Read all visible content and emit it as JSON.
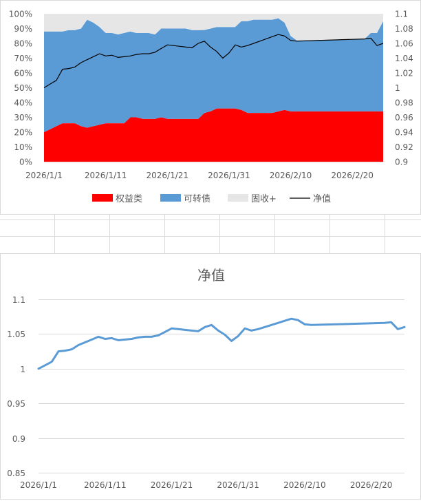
{
  "colors": {
    "equity": "#ff0000",
    "convertible": "#5b9bd5",
    "fixed_income": "#e7e6e6",
    "nav_line_top": "#000000",
    "nav_line_bottom": "#5b9bd5",
    "grid": "#d9d9d9",
    "text": "#595959"
  },
  "chart_data": [
    {
      "type": "area",
      "stacked": true,
      "x_type": "date",
      "dates": [
        "2026-01-01",
        "2026-01-02",
        "2026-01-03",
        "2026-01-04",
        "2026-01-05",
        "2026-01-06",
        "2026-01-07",
        "2026-01-08",
        "2026-01-09",
        "2026-01-10",
        "2026-01-11",
        "2026-01-12",
        "2026-01-13",
        "2026-01-14",
        "2026-01-15",
        "2026-01-16",
        "2026-01-17",
        "2026-01-18",
        "2026-01-19",
        "2026-01-20",
        "2026-01-21",
        "2026-01-22",
        "2026-01-23",
        "2026-01-24",
        "2026-01-25",
        "2026-01-26",
        "2026-01-27",
        "2026-01-28",
        "2026-01-29",
        "2026-01-30",
        "2026-01-31",
        "2026-02-01",
        "2026-02-02",
        "2026-02-03",
        "2026-02-04",
        "2026-02-05",
        "2026-02-06",
        "2026-02-07",
        "2026-02-08",
        "2026-02-09",
        "2026-02-10",
        "2026-02-11",
        "2026-02-22",
        "2026-02-23",
        "2026-02-24",
        "2026-02-25"
      ],
      "series": [
        {
          "name": "权益类",
          "axis": "left",
          "values": [
            0.2,
            0.22,
            0.24,
            0.26,
            0.26,
            0.26,
            0.24,
            0.23,
            0.24,
            0.25,
            0.26,
            0.26,
            0.26,
            0.26,
            0.3,
            0.3,
            0.29,
            0.29,
            0.29,
            0.3,
            0.29,
            0.29,
            0.29,
            0.29,
            0.29,
            0.29,
            0.33,
            0.34,
            0.36,
            0.36,
            0.36,
            0.36,
            0.35,
            0.33,
            0.33,
            0.33,
            0.33,
            0.33,
            0.34,
            0.35,
            0.34,
            0.34,
            0.34,
            0.34,
            0.34,
            0.34
          ]
        },
        {
          "name": "可转债",
          "axis": "left",
          "values": [
            0.68,
            0.66,
            0.64,
            0.62,
            0.63,
            0.63,
            0.66,
            0.73,
            0.7,
            0.66,
            0.61,
            0.61,
            0.6,
            0.61,
            0.58,
            0.57,
            0.58,
            0.58,
            0.57,
            0.6,
            0.61,
            0.61,
            0.61,
            0.61,
            0.6,
            0.6,
            0.56,
            0.56,
            0.55,
            0.55,
            0.55,
            0.55,
            0.6,
            0.62,
            0.63,
            0.63,
            0.63,
            0.63,
            0.63,
            0.59,
            0.51,
            0.48,
            0.49,
            0.53,
            0.53,
            0.61
          ]
        },
        {
          "name": "固收+",
          "axis": "left",
          "values": [
            0.12,
            0.12,
            0.12,
            0.12,
            0.11,
            0.11,
            0.1,
            0.04,
            0.06,
            0.09,
            0.13,
            0.13,
            0.14,
            0.13,
            0.12,
            0.13,
            0.13,
            0.13,
            0.14,
            0.1,
            0.1,
            0.1,
            0.1,
            0.1,
            0.11,
            0.11,
            0.11,
            0.1,
            0.09,
            0.09,
            0.09,
            0.09,
            0.05,
            0.05,
            0.04,
            0.04,
            0.04,
            0.04,
            0.03,
            0.06,
            0.15,
            0.18,
            0.17,
            0.13,
            0.13,
            0.05
          ]
        },
        {
          "name": "净值",
          "axis": "right",
          "line": true,
          "values": [
            1.0,
            1.005,
            1.01,
            1.025,
            1.026,
            1.028,
            1.034,
            1.038,
            1.042,
            1.046,
            1.043,
            1.044,
            1.041,
            1.042,
            1.043,
            1.045,
            1.046,
            1.046,
            1.048,
            1.053,
            1.058,
            1.057,
            1.056,
            1.055,
            1.054,
            1.06,
            1.063,
            1.055,
            1.049,
            1.04,
            1.047,
            1.058,
            1.055,
            1.057,
            1.06,
            1.063,
            1.066,
            1.069,
            1.072,
            1.07,
            1.064,
            1.063,
            1.066,
            1.067,
            1.057,
            1.06
          ]
        }
      ],
      "y_left": {
        "min": 0,
        "max": 1,
        "ticks": [
          "0%",
          "10%",
          "20%",
          "30%",
          "40%",
          "50%",
          "60%",
          "70%",
          "80%",
          "90%",
          "100%"
        ]
      },
      "y_right": {
        "min": 0.9,
        "max": 1.1,
        "ticks": [
          "0.9",
          "0.92",
          "0.94",
          "0.96",
          "0.98",
          "1",
          "1.02",
          "1.04",
          "1.06",
          "1.08",
          "1.1"
        ]
      },
      "x_ticks": [
        "2026/1/1",
        "2026/1/11",
        "2026/1/21",
        "2026/1/31",
        "2026/2/10",
        "2026/2/20"
      ],
      "legend": {
        "position": "bottom",
        "items": [
          "权益类",
          "可转债",
          "固收+",
          "净值"
        ]
      },
      "grid": false
    },
    {
      "type": "line",
      "title": "净值",
      "x_type": "date",
      "dates": [
        "2026-01-01",
        "2026-01-02",
        "2026-01-03",
        "2026-01-04",
        "2026-01-05",
        "2026-01-06",
        "2026-01-07",
        "2026-01-08",
        "2026-01-09",
        "2026-01-10",
        "2026-01-11",
        "2026-01-12",
        "2026-01-13",
        "2026-01-14",
        "2026-01-15",
        "2026-01-16",
        "2026-01-17",
        "2026-01-18",
        "2026-01-19",
        "2026-01-20",
        "2026-01-21",
        "2026-01-22",
        "2026-01-23",
        "2026-01-24",
        "2026-01-25",
        "2026-01-26",
        "2026-01-27",
        "2026-01-28",
        "2026-01-29",
        "2026-01-30",
        "2026-01-31",
        "2026-02-01",
        "2026-02-02",
        "2026-02-03",
        "2026-02-04",
        "2026-02-05",
        "2026-02-06",
        "2026-02-07",
        "2026-02-08",
        "2026-02-09",
        "2026-02-10",
        "2026-02-11",
        "2026-02-22",
        "2026-02-23",
        "2026-02-24",
        "2026-02-25"
      ],
      "series": [
        {
          "values": [
            1.0,
            1.005,
            1.01,
            1.025,
            1.026,
            1.028,
            1.034,
            1.038,
            1.042,
            1.046,
            1.043,
            1.044,
            1.041,
            1.042,
            1.043,
            1.045,
            1.046,
            1.046,
            1.048,
            1.053,
            1.058,
            1.057,
            1.056,
            1.055,
            1.054,
            1.06,
            1.063,
            1.055,
            1.049,
            1.04,
            1.047,
            1.058,
            1.055,
            1.057,
            1.06,
            1.063,
            1.066,
            1.069,
            1.072,
            1.07,
            1.064,
            1.063,
            1.066,
            1.067,
            1.057,
            1.06
          ]
        }
      ],
      "y": {
        "min": 0.85,
        "max": 1.1,
        "ticks": [
          "0.85",
          "0.9",
          "0.95",
          "1",
          "1.05",
          "1.1"
        ]
      },
      "x_ticks": [
        "2026/1/1",
        "2026/1/11",
        "2026/1/21",
        "2026/1/31",
        "2026/2/10",
        "2026/2/20"
      ],
      "grid": true
    }
  ]
}
